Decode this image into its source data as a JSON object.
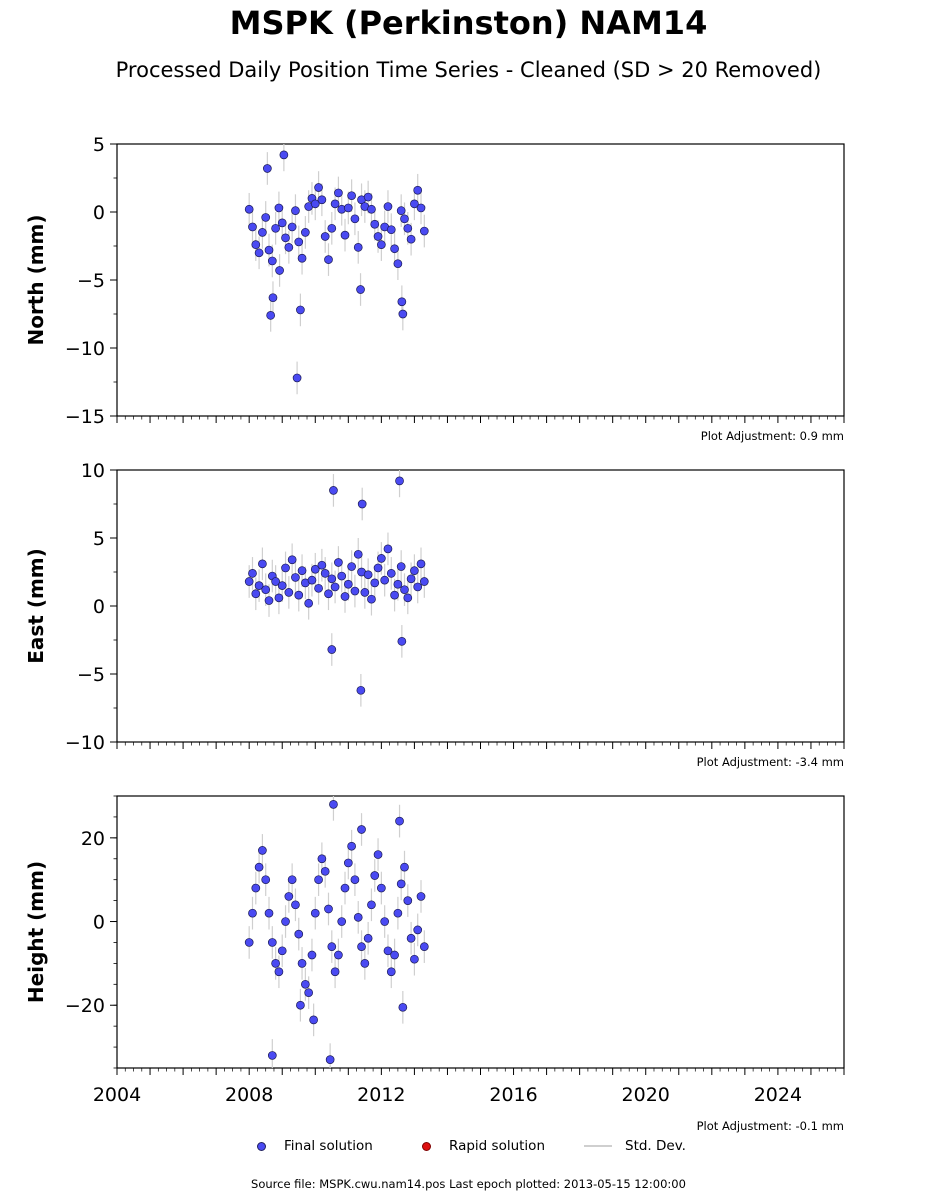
{
  "title": "MSPK (Perkinston) NAM14",
  "subtitle": "Processed Daily Position Time Series - Cleaned (SD > 20 Removed)",
  "legend": {
    "final": "Final solution",
    "rapid": "Rapid solution",
    "sd": "Std. Dev."
  },
  "footer": "Source file: MSPK.cwu.nam14.pos  Last epoch plotted: 2013-05-15 12:00:00",
  "colors": {
    "final_marker": "#4a4af2",
    "rapid_marker": "#dd1010",
    "std_dev_line": "#cfcfcf"
  },
  "chart_data": [
    {
      "type": "scatter",
      "ylabel": "North (mm)",
      "ylim": [
        -15,
        5
      ],
      "yticks": [
        5,
        0,
        -5,
        -10,
        -15
      ],
      "ytick_labels": [
        "5",
        "0",
        "−5",
        "−10",
        "−15"
      ],
      "xlim": [
        2004,
        2026
      ],
      "xtick_labels": [],
      "adjustment": "Plot Adjustment: 0.9 mm",
      "series": [
        {
          "name": "Final solution",
          "x": [
            2008.0,
            2008.1,
            2008.2,
            2008.3,
            2008.4,
            2008.5,
            2008.6,
            2008.7,
            2008.8,
            2008.9,
            2009.0,
            2009.1,
            2009.2,
            2009.3,
            2009.4,
            2009.5,
            2009.6,
            2009.7,
            2009.8,
            2009.9,
            2010.0,
            2010.1,
            2010.2,
            2010.3,
            2010.4,
            2010.5,
            2010.6,
            2010.7,
            2010.8,
            2010.9,
            2011.0,
            2011.1,
            2011.2,
            2011.3,
            2011.4,
            2011.5,
            2011.6,
            2011.7,
            2011.8,
            2011.9,
            2012.0,
            2012.1,
            2012.2,
            2012.3,
            2012.4,
            2012.5,
            2012.6,
            2012.7,
            2012.8,
            2012.9,
            2013.0,
            2013.1,
            2013.2,
            2013.3,
            2008.65,
            2008.72,
            2009.45,
            2008.92,
            2009.55,
            2011.37,
            2012.65,
            2012.62,
            2009.05,
            2008.55
          ],
          "y": [
            0.2,
            -1.1,
            -2.4,
            -3.0,
            -1.5,
            -0.4,
            -2.8,
            -3.6,
            -1.2,
            0.3,
            -0.8,
            -1.9,
            -2.6,
            -1.1,
            0.1,
            -2.2,
            -3.4,
            -1.5,
            0.4,
            1.0,
            0.6,
            1.8,
            0.9,
            -1.8,
            -3.5,
            -1.2,
            0.6,
            1.4,
            0.2,
            -1.7,
            0.3,
            1.2,
            -0.5,
            -2.6,
            0.9,
            0.4,
            1.1,
            0.2,
            -0.9,
            -1.8,
            -2.4,
            -1.1,
            0.4,
            -1.3,
            -2.7,
            -3.8,
            0.1,
            -0.5,
            -1.2,
            -2.0,
            0.6,
            1.6,
            0.3,
            -1.4,
            -7.6,
            -6.3,
            -12.2,
            -4.3,
            -7.2,
            -5.7,
            -7.5,
            -6.6,
            4.2,
            3.2
          ]
        },
        {
          "name": "Rapid solution",
          "x": [],
          "y": []
        }
      ]
    },
    {
      "type": "scatter",
      "ylabel": "East (mm)",
      "ylim": [
        -10,
        10
      ],
      "yticks": [
        10,
        5,
        0,
        -5,
        -10
      ],
      "ytick_labels": [
        "10",
        "5",
        "0",
        "−5",
        "−10"
      ],
      "xlim": [
        2004,
        2026
      ],
      "xtick_labels": [],
      "adjustment": "Plot Adjustment: -3.4 mm",
      "series": [
        {
          "name": "Final solution",
          "x": [
            2008.0,
            2008.1,
            2008.2,
            2008.3,
            2008.4,
            2008.5,
            2008.6,
            2008.7,
            2008.8,
            2008.9,
            2009.0,
            2009.1,
            2009.2,
            2009.3,
            2009.4,
            2009.5,
            2009.6,
            2009.7,
            2009.8,
            2009.9,
            2010.0,
            2010.1,
            2010.2,
            2010.3,
            2010.4,
            2010.5,
            2010.6,
            2010.7,
            2010.8,
            2010.9,
            2011.0,
            2011.1,
            2011.2,
            2011.3,
            2011.4,
            2011.5,
            2011.6,
            2011.7,
            2011.8,
            2011.9,
            2012.0,
            2012.1,
            2012.2,
            2012.3,
            2012.4,
            2012.5,
            2012.6,
            2012.7,
            2012.8,
            2012.9,
            2013.0,
            2013.1,
            2013.2,
            2013.3,
            2010.55,
            2011.42,
            2012.55,
            2010.5,
            2011.38,
            2012.62
          ],
          "y": [
            1.8,
            2.4,
            0.9,
            1.5,
            3.1,
            1.2,
            0.4,
            2.2,
            1.8,
            0.6,
            1.5,
            2.8,
            1.0,
            3.4,
            2.1,
            0.8,
            2.6,
            1.7,
            0.2,
            1.9,
            2.7,
            1.3,
            3.0,
            2.4,
            0.9,
            2.0,
            1.4,
            3.2,
            2.2,
            0.7,
            1.6,
            2.9,
            1.1,
            3.8,
            2.5,
            1.0,
            2.3,
            0.5,
            1.7,
            2.8,
            3.5,
            1.9,
            4.2,
            2.4,
            0.8,
            1.6,
            2.9,
            1.2,
            0.6,
            2.0,
            2.6,
            1.4,
            3.1,
            1.8,
            8.5,
            7.5,
            9.2,
            -3.2,
            -6.2,
            -2.6
          ]
        },
        {
          "name": "Rapid solution",
          "x": [],
          "y": []
        }
      ]
    },
    {
      "type": "scatter",
      "ylabel": "Height (mm)",
      "ylim": [
        -35,
        30
      ],
      "yticks": [
        20,
        0,
        -20
      ],
      "ytick_labels": [
        "20",
        "0",
        "−20"
      ],
      "xlim": [
        2004,
        2026
      ],
      "xticks": [
        2004,
        2008,
        2012,
        2016,
        2020,
        2024
      ],
      "xtick_labels": [
        "2004",
        "2008",
        "2012",
        "2016",
        "2020",
        "2024"
      ],
      "adjustment": "Plot Adjustment: -0.1 mm",
      "series": [
        {
          "name": "Final solution",
          "x": [
            2008.0,
            2008.1,
            2008.2,
            2008.3,
            2008.4,
            2008.5,
            2008.6,
            2008.7,
            2008.8,
            2008.9,
            2009.0,
            2009.1,
            2009.2,
            2009.3,
            2009.4,
            2009.5,
            2009.6,
            2009.7,
            2009.8,
            2009.9,
            2010.0,
            2010.1,
            2010.2,
            2010.3,
            2010.4,
            2010.5,
            2010.6,
            2010.7,
            2010.8,
            2010.9,
            2011.0,
            2011.1,
            2011.2,
            2011.3,
            2011.4,
            2011.5,
            2011.6,
            2011.7,
            2011.8,
            2011.9,
            2012.0,
            2012.1,
            2012.2,
            2012.3,
            2012.4,
            2012.5,
            2012.6,
            2012.7,
            2012.8,
            2012.9,
            2013.0,
            2013.1,
            2013.2,
            2013.3,
            2008.7,
            2010.45,
            2010.55,
            2009.95,
            2012.55,
            2012.65,
            2009.55,
            2011.4
          ],
          "y": [
            -5.0,
            2.0,
            8.0,
            13.0,
            17.0,
            10.0,
            2.0,
            -5.0,
            -10.0,
            -12.0,
            -7.0,
            0.0,
            6.0,
            10.0,
            4.0,
            -3.0,
            -10.0,
            -15.0,
            -17.0,
            -8.0,
            2.0,
            10.0,
            15.0,
            12.0,
            3.0,
            -6.0,
            -12.0,
            -8.0,
            0.0,
            8.0,
            14.0,
            18.0,
            10.0,
            1.0,
            -6.0,
            -10.0,
            -4.0,
            4.0,
            11.0,
            16.0,
            8.0,
            0.0,
            -7.0,
            -12.0,
            -8.0,
            2.0,
            9.0,
            13.0,
            5.0,
            -4.0,
            -9.0,
            -2.0,
            6.0,
            -6.0,
            -32.0,
            -33.0,
            28.0,
            -23.5,
            24.0,
            -20.5,
            -20.0,
            22.0
          ]
        },
        {
          "name": "Rapid solution",
          "x": [],
          "y": []
        }
      ]
    }
  ]
}
